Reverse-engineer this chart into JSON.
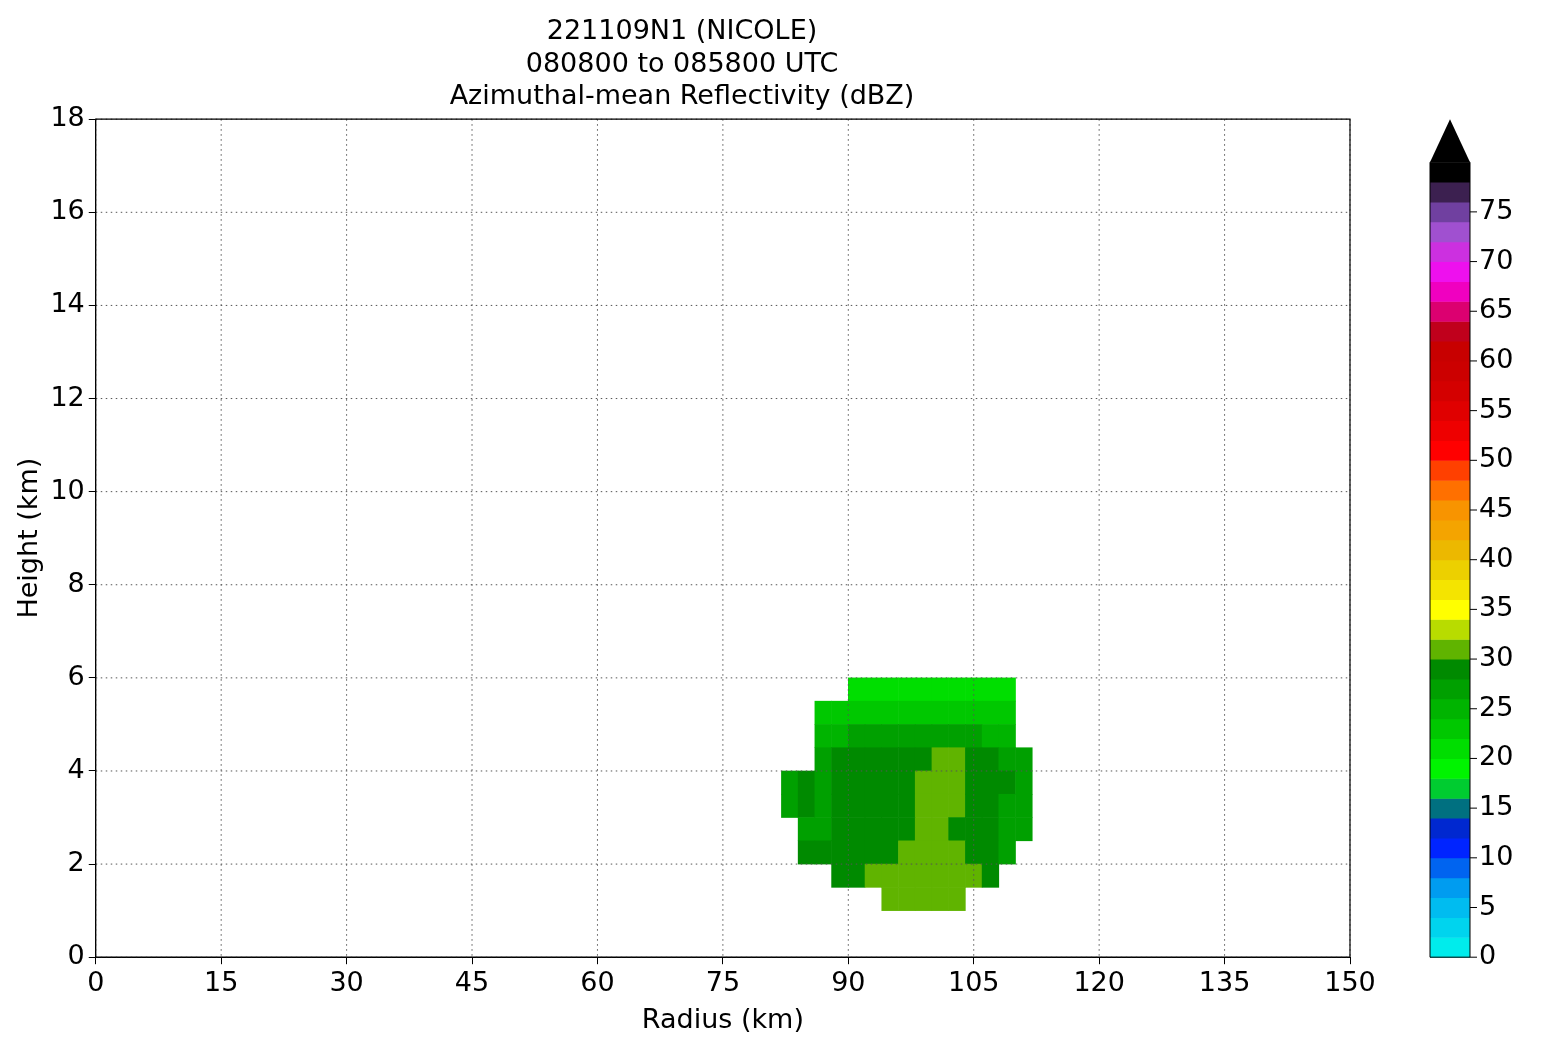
{
  "chart_data": {
    "type": "scatter",
    "title": "221109N1 (NICOLE)\n080800 to 085800 UTC\nAzimuthal-mean Reflectivity (dBZ)",
    "xlabel": "Radius (km)",
    "ylabel": "Height (km)",
    "xlim": [
      0,
      150
    ],
    "xticks": [
      0,
      15,
      30,
      45,
      60,
      75,
      90,
      105,
      120,
      135,
      150
    ],
    "ylim": [
      0,
      18
    ],
    "yticks": [
      0,
      2,
      4,
      6,
      8,
      10,
      12,
      14,
      16,
      18
    ],
    "clim": [
      0,
      80
    ],
    "cticks": [
      0,
      5,
      10,
      15,
      20,
      25,
      30,
      35,
      40,
      45,
      50,
      55,
      60,
      65,
      70,
      75
    ],
    "colors": [
      "#00ecec",
      "#00d4ee",
      "#00bcf0",
      "#009cf0",
      "#0064f0",
      "#0024ff",
      "#0028d0",
      "#007080",
      "#00cc30",
      "#00f400",
      "#00de00",
      "#00c800",
      "#00b400",
      "#00a000",
      "#008a00",
      "#60b400",
      "#b8dc00",
      "#ffff00",
      "#f4e400",
      "#ecd000",
      "#ecb800",
      "#f4a400",
      "#f89400",
      "#ff7000",
      "#ff4000",
      "#ff0000",
      "#ee0000",
      "#e00000",
      "#d40000",
      "#cc0000",
      "#c80000",
      "#c0001c",
      "#dc0070",
      "#f000c0",
      "#ee10ee",
      "#cc30e0",
      "#a050d0",
      "#7040a0",
      "#3c2050",
      "#000000"
    ],
    "grid": true,
    "marker": "square",
    "series": [
      {
        "x": [
          91,
          93,
          95,
          97,
          99,
          101,
          103,
          105,
          107,
          109,
          87,
          89,
          91,
          93,
          95,
          97,
          99,
          101,
          103,
          105,
          107,
          109,
          87,
          89,
          91,
          93,
          95,
          97,
          99,
          101,
          103,
          105,
          107,
          109,
          87,
          89,
          91,
          93,
          95,
          97,
          99,
          101,
          103,
          105,
          107,
          109,
          111,
          83,
          85,
          87,
          89,
          91,
          93,
          95,
          97,
          99,
          101,
          103,
          105,
          107,
          109,
          111,
          83,
          85,
          87,
          89,
          91,
          93,
          95,
          97,
          99,
          101,
          103,
          105,
          107,
          109,
          111,
          85,
          87,
          89,
          91,
          93,
          95,
          97,
          99,
          101,
          103,
          105,
          107,
          109,
          111,
          85,
          87,
          89,
          91,
          93,
          95,
          97,
          99,
          101,
          103,
          105,
          107,
          109,
          89,
          91,
          93,
          95,
          97,
          99,
          101,
          103,
          105,
          107,
          95,
          97,
          99,
          101,
          103
        ],
        "values": [
          5.75,
          5.75,
          5.75,
          5.75,
          5.75,
          5.75,
          5.75,
          5.75,
          5.75,
          5.75,
          5.25,
          5.25,
          5.25,
          5.25,
          5.25,
          5.25,
          5.25,
          5.25,
          5.25,
          5.25,
          5.25,
          5.25,
          4.75,
          4.75,
          4.75,
          4.75,
          4.75,
          4.75,
          4.75,
          4.75,
          4.75,
          4.75,
          4.75,
          4.75,
          4.25,
          4.25,
          4.25,
          4.25,
          4.25,
          4.25,
          4.25,
          4.25,
          4.25,
          4.25,
          4.25,
          4.25,
          4.25,
          3.75,
          3.75,
          3.75,
          3.75,
          3.75,
          3.75,
          3.75,
          3.75,
          3.75,
          3.75,
          3.75,
          3.75,
          3.75,
          3.75,
          3.75,
          3.25,
          3.25,
          3.25,
          3.25,
          3.25,
          3.25,
          3.25,
          3.25,
          3.25,
          3.25,
          3.25,
          3.25,
          3.25,
          3.25,
          3.25,
          2.75,
          2.75,
          2.75,
          2.75,
          2.75,
          2.75,
          2.75,
          2.75,
          2.75,
          2.75,
          2.75,
          2.75,
          2.75,
          2.75,
          2.25,
          2.25,
          2.25,
          2.25,
          2.25,
          2.25,
          2.25,
          2.25,
          2.25,
          2.25,
          2.25,
          2.25,
          2.25,
          1.75,
          1.75,
          1.75,
          1.75,
          1.75,
          1.75,
          1.75,
          1.75,
          1.75,
          1.75,
          1.25,
          1.25,
          1.25,
          1.25,
          1.25
        ],
        "cvalues": [
          21,
          21,
          21,
          21,
          21,
          21,
          21,
          21,
          21,
          21,
          23,
          23,
          23,
          23,
          23,
          23,
          23,
          23,
          23,
          23,
          23,
          23,
          25,
          25,
          27,
          27,
          27,
          27,
          27,
          27,
          27,
          27,
          25,
          25,
          27,
          29,
          29,
          29,
          29,
          29,
          29,
          31,
          31,
          29,
          29,
          27,
          27,
          27,
          29,
          27,
          29,
          29,
          29,
          29,
          29,
          31,
          31,
          31,
          29,
          29,
          29,
          27,
          27,
          29,
          27,
          29,
          29,
          29,
          29,
          29,
          31,
          31,
          31,
          29,
          29,
          27,
          27,
          27,
          27,
          29,
          29,
          29,
          29,
          29,
          31,
          31,
          29,
          29,
          29,
          27,
          27,
          29,
          29,
          29,
          29,
          29,
          29,
          31,
          31,
          31,
          31,
          29,
          29,
          27,
          29,
          29,
          31,
          31,
          31,
          31,
          31,
          31,
          31,
          29,
          31,
          31,
          31,
          31,
          31
        ]
      }
    ]
  }
}
